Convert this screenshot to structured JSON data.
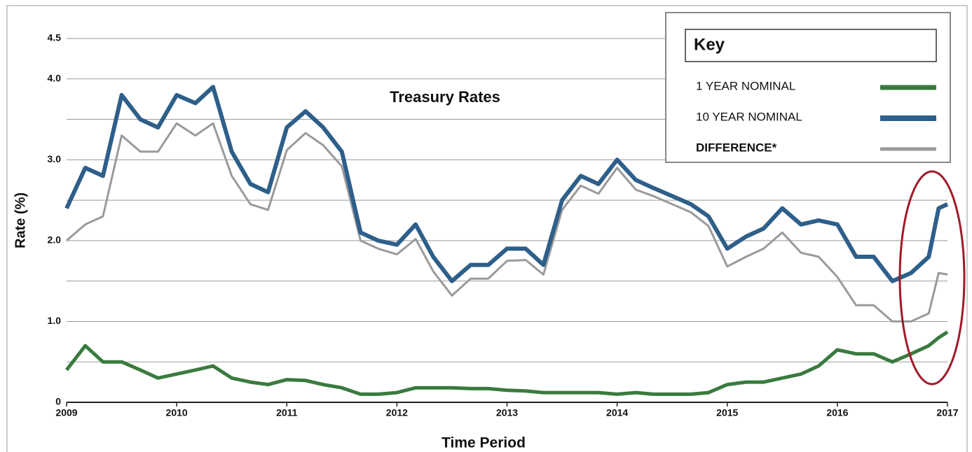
{
  "chart_data": {
    "type": "line",
    "title": "Treasury Rates",
    "xlabel": "Time Period",
    "ylabel": "Rate (%)",
    "legend_title": "Key",
    "legend": "top-right",
    "grid": true,
    "xlim": [
      2009,
      2017
    ],
    "xticks": [
      2009,
      2010,
      2011,
      2012,
      2013,
      2014,
      2015,
      2016,
      2017
    ],
    "ylim": [
      0,
      4.5
    ],
    "yticks": [
      0,
      {
        "value": 1,
        "label": "1.0"
      },
      {
        "value": 2,
        "label": "2.0"
      },
      {
        "value": 3,
        "label": "3.0"
      },
      {
        "value": 4,
        "label": "4.0"
      },
      4.5
    ],
    "yticks_minor": [
      0.5,
      1.5,
      2.5,
      3.5
    ],
    "x": [
      2009,
      2009.17,
      2009.33,
      2009.5,
      2009.67,
      2009.83,
      2010,
      2010.17,
      2010.33,
      2010.5,
      2010.67,
      2010.83,
      2011,
      2011.17,
      2011.33,
      2011.5,
      2011.67,
      2011.83,
      2012,
      2012.17,
      2012.33,
      2012.5,
      2012.67,
      2012.83,
      2013,
      2013.17,
      2013.33,
      2013.5,
      2013.67,
      2013.83,
      2014,
      2014.17,
      2014.33,
      2014.5,
      2014.67,
      2014.83,
      2015,
      2015.17,
      2015.33,
      2015.5,
      2015.67,
      2015.83,
      2016,
      2016.17,
      2016.33,
      2016.5,
      2016.67,
      2016.83,
      2016.92,
      2017
    ],
    "series": [
      {
        "name": "1 YEAR NOMINAL",
        "color": "#3a7a3e",
        "width": 5,
        "values": [
          0.4,
          0.7,
          0.5,
          0.5,
          0.4,
          0.3,
          0.35,
          0.4,
          0.45,
          0.3,
          0.25,
          0.22,
          0.28,
          0.27,
          0.22,
          0.18,
          0.1,
          0.1,
          0.12,
          0.18,
          0.18,
          0.18,
          0.17,
          0.17,
          0.15,
          0.14,
          0.12,
          0.12,
          0.12,
          0.12,
          0.1,
          0.12,
          0.1,
          0.1,
          0.1,
          0.12,
          0.22,
          0.25,
          0.25,
          0.3,
          0.35,
          0.45,
          0.65,
          0.6,
          0.6,
          0.5,
          0.6,
          0.7,
          0.8,
          0.87
        ]
      },
      {
        "name": "10 YEAR NOMINAL",
        "color": "#2e5f8a",
        "width": 6,
        "values": [
          2.4,
          2.9,
          2.8,
          3.8,
          3.5,
          3.4,
          3.8,
          3.7,
          3.9,
          3.1,
          2.7,
          2.6,
          3.4,
          3.6,
          3.4,
          3.1,
          2.1,
          2.0,
          1.95,
          2.2,
          1.8,
          1.5,
          1.7,
          1.7,
          1.9,
          1.9,
          1.7,
          2.5,
          2.8,
          2.7,
          3.0,
          2.75,
          2.65,
          2.55,
          2.45,
          2.3,
          1.9,
          2.05,
          2.15,
          2.4,
          2.2,
          2.25,
          2.2,
          1.8,
          1.8,
          1.5,
          1.6,
          1.8,
          2.4,
          2.45
        ]
      },
      {
        "name": "DIFFERENCE*",
        "color": "#9a9a9a",
        "width": 3,
        "values": [
          2.0,
          2.2,
          2.3,
          3.3,
          3.1,
          3.1,
          3.45,
          3.3,
          3.45,
          2.8,
          2.45,
          2.38,
          3.12,
          3.33,
          3.18,
          2.92,
          2.0,
          1.9,
          1.83,
          2.02,
          1.62,
          1.32,
          1.53,
          1.53,
          1.75,
          1.76,
          1.58,
          2.38,
          2.68,
          2.58,
          2.9,
          2.63,
          2.55,
          2.45,
          2.35,
          2.18,
          1.68,
          1.8,
          1.9,
          2.1,
          1.85,
          1.8,
          1.55,
          1.2,
          1.2,
          1.0,
          1.0,
          1.1,
          1.6,
          1.58
        ]
      }
    ]
  }
}
